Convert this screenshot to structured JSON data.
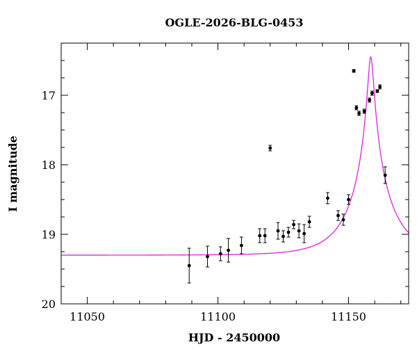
{
  "chart_data": {
    "type": "scatter",
    "title": "OGLE-2026-BLG-0453",
    "xlabel": "HJD - 2450000",
    "ylabel": "I magnitude",
    "xlim": [
      11040,
      11173
    ],
    "ylim": [
      20,
      16.25
    ],
    "y_inverted": true,
    "x_ticks": [
      11050,
      11100,
      11150
    ],
    "y_ticks": [
      17,
      18,
      19,
      20
    ],
    "x_minor_step": 10,
    "y_minor_step": 0.25,
    "grid": false,
    "series": [
      {
        "kind": "points_with_errorbars",
        "color": "#000000",
        "x": [
          11089,
          11096,
          11101,
          11104,
          11109,
          11116,
          11118,
          11120,
          11123,
          11125,
          11127,
          11129,
          11131,
          11133,
          11135,
          11142,
          11146,
          11148,
          11150,
          11152,
          11153,
          11154,
          11156,
          11158,
          11159,
          11161,
          11162,
          11164
        ],
        "y": [
          19.45,
          19.32,
          19.28,
          19.23,
          19.16,
          19.02,
          19.02,
          17.76,
          18.95,
          19.03,
          18.97,
          18.86,
          18.95,
          18.99,
          18.82,
          18.48,
          18.73,
          18.79,
          18.5,
          16.65,
          17.18,
          17.26,
          17.23,
          17.07,
          16.97,
          16.94,
          16.88,
          18.15
        ],
        "err": [
          0.25,
          0.15,
          0.1,
          0.17,
          0.12,
          0.1,
          0.1,
          0.04,
          0.12,
          0.08,
          0.07,
          0.06,
          0.1,
          0.13,
          0.08,
          0.08,
          0.07,
          0.08,
          0.07,
          0.02,
          0.03,
          0.03,
          0.03,
          0.03,
          0.03,
          0.02,
          0.03,
          0.12
        ]
      },
      {
        "kind": "model_curve",
        "color": "#e020e0",
        "model": "pspl_magnitude",
        "baseline_mag": 19.3,
        "t0": 11158.5,
        "tE": 14.6,
        "u0": 0.0725,
        "x_range": [
          11040,
          11173
        ]
      }
    ]
  }
}
